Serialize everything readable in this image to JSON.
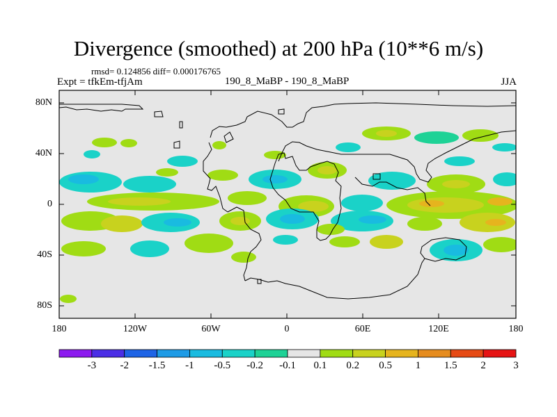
{
  "title": "Divergence (smoothed) at 200 hPa (10**6 m/s)",
  "stats": "rmsd= 0.124856 diff= 0.000176765",
  "expt": "Expt = tfkEm-tfjAm",
  "comparison": "190_8_MaBP - 190_8_MaBP",
  "season": "JJA",
  "map": {
    "projection": "cylindrical equidistant",
    "lon_range": [
      -180,
      180
    ],
    "lat_range": [
      -90,
      90
    ],
    "background_color": "#e6e6e6",
    "x_tick_labels": [
      "180",
      "120W",
      "60W",
      "0",
      "60E",
      "120E",
      "180"
    ],
    "y_tick_labels": [
      "80N",
      "40N",
      "0",
      "40S",
      "80S"
    ]
  },
  "colorbar": {
    "labels": [
      "-3",
      "-2",
      "-1.5",
      "-1",
      "-0.5",
      "-0.2",
      "-0.1",
      "0.1",
      "0.2",
      "0.5",
      "1",
      "1.5",
      "2",
      "3"
    ],
    "colors": [
      "#8c1aef",
      "#4b2ee6",
      "#1e64e6",
      "#1e9be6",
      "#19bbe0",
      "#1ad2c8",
      "#1ed296",
      "#e6e6e6",
      "#a0dc14",
      "#c8d21e",
      "#e6b41e",
      "#e68c1e",
      "#e64a14",
      "#e61414"
    ]
  }
}
